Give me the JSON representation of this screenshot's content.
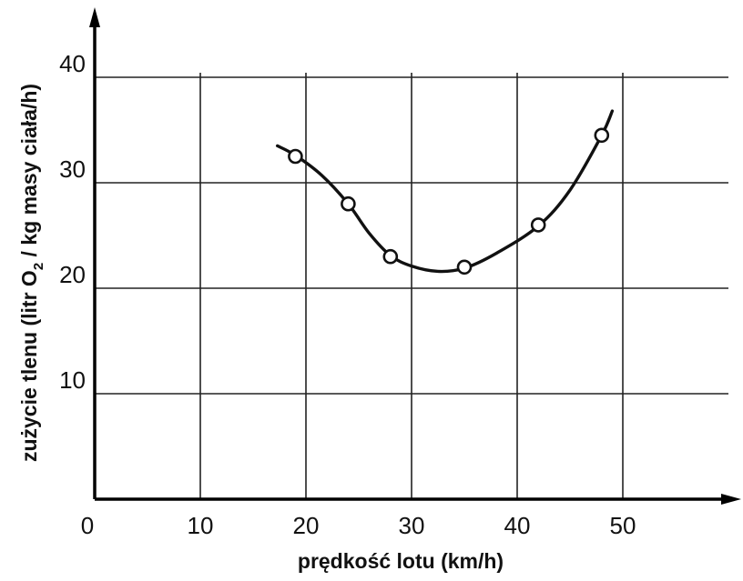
{
  "chart_data": {
    "type": "line",
    "title": "",
    "xlabel": "prędkość lotu (km/h)",
    "ylabel": {
      "before": "zużycie tlenu (litr O",
      "subscript": "2",
      "after": " / kg masy ciała/h)"
    },
    "xlim": [
      0,
      60
    ],
    "ylim": [
      0,
      40
    ],
    "x_ticks": [
      "0",
      "10",
      "20",
      "30",
      "40",
      "50"
    ],
    "y_ticks": [
      "10",
      "20",
      "30",
      "40"
    ],
    "grid": true,
    "markers": "open-circle",
    "series": [
      {
        "points": [
          {
            "x": 19,
            "y": 32.5
          },
          {
            "x": 24,
            "y": 28
          },
          {
            "x": 28,
            "y": 23
          },
          {
            "x": 35,
            "y": 22
          },
          {
            "x": 42,
            "y": 26
          },
          {
            "x": 48,
            "y": 34.5
          }
        ],
        "curve": [
          {
            "x": 17.3,
            "y": 33.5
          },
          {
            "x": 19,
            "y": 32.6
          },
          {
            "x": 21.5,
            "y": 30.7
          },
          {
            "x": 24,
            "y": 28
          },
          {
            "x": 26,
            "y": 25.2
          },
          {
            "x": 28,
            "y": 23.1
          },
          {
            "x": 30,
            "y": 22.1
          },
          {
            "x": 32.5,
            "y": 21.6
          },
          {
            "x": 35,
            "y": 21.9
          },
          {
            "x": 38,
            "y": 23.3
          },
          {
            "x": 42,
            "y": 25.9
          },
          {
            "x": 45,
            "y": 29.3
          },
          {
            "x": 48,
            "y": 34.5
          },
          {
            "x": 49,
            "y": 36.8
          }
        ]
      }
    ]
  }
}
